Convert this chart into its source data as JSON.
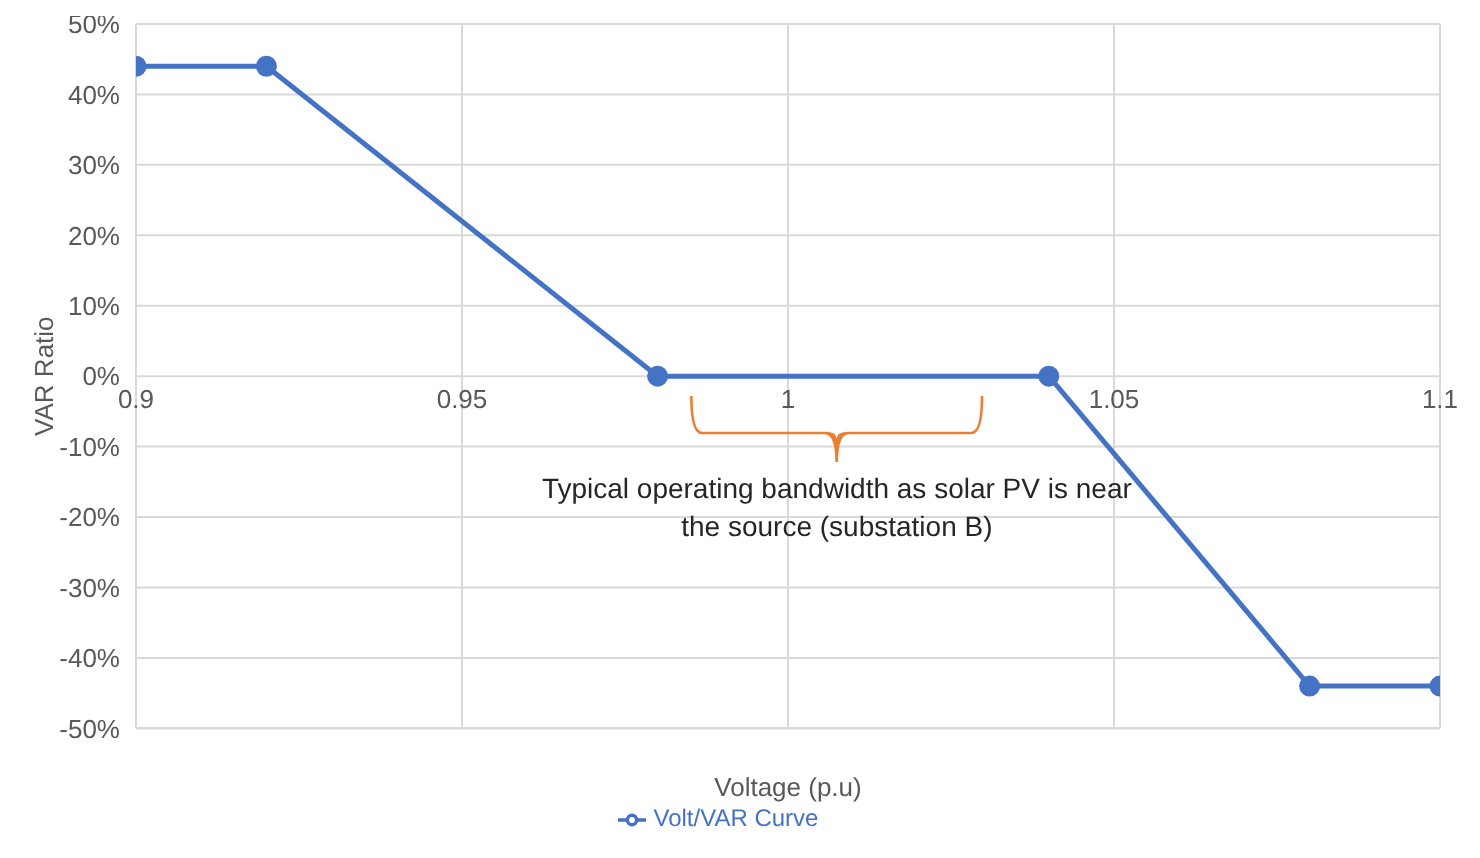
{
  "chart_data": {
    "type": "line",
    "xlabel": "Voltage (p.u)",
    "ylabel": "VAR Ratio",
    "x": [
      0.9,
      0.92,
      0.98,
      1.04,
      1.08,
      1.1
    ],
    "series": [
      {
        "name": "Volt/VAR Curve",
        "color": "#4472c4",
        "values": [
          44,
          44,
          0,
          0,
          -44,
          -44
        ]
      }
    ],
    "xlim": [
      0.9,
      1.1
    ],
    "xticks": [
      0.9,
      0.95,
      1,
      1.05,
      1.1
    ],
    "ylim": [
      -50,
      50
    ],
    "yticks": [
      {
        "value": -50,
        "label": "-50%"
      },
      {
        "value": -40,
        "label": "-40%"
      },
      {
        "value": -30,
        "label": "-30%"
      },
      {
        "value": -20,
        "label": "-20%"
      },
      {
        "value": -10,
        "label": "-10%"
      },
      {
        "value": 0,
        "label": "0%"
      },
      {
        "value": 10,
        "label": "10%"
      },
      {
        "value": 20,
        "label": "20%"
      },
      {
        "value": 30,
        "label": "30%"
      },
      {
        "value": 40,
        "label": "40%"
      },
      {
        "value": 50,
        "label": "50%"
      }
    ],
    "grid": true,
    "legend": "bottom",
    "marker": "circle",
    "line_style": "solid",
    "annotations": [
      "Typical operating bandwidth as solar PV is near the source (substation B)"
    ]
  }
}
